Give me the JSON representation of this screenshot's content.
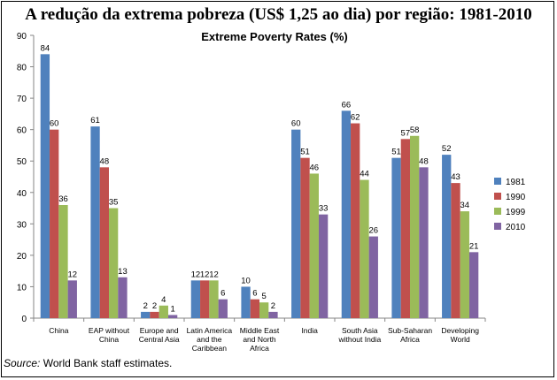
{
  "headline": "A redução da extrema pobreza (US$ 1,25 ao dia) por região: 1981-2010",
  "source": {
    "label": "Source:",
    "text": "World Bank staff estimates."
  },
  "chart_data": {
    "type": "bar",
    "title": "Extreme Poverty Rates (%)",
    "xlabel": "",
    "ylabel": "",
    "ylim": [
      0,
      90
    ],
    "yticks": [
      0,
      10,
      20,
      30,
      40,
      50,
      60,
      70,
      80,
      90
    ],
    "grid": false,
    "legend": "right",
    "categories": [
      [
        "China"
      ],
      [
        "EAP without",
        "China"
      ],
      [
        "Europe and",
        "Central Asia"
      ],
      [
        "Latin America",
        "and the",
        "Caribbean"
      ],
      [
        "Middle East",
        "and North",
        "Africa"
      ],
      [
        "India"
      ],
      [
        "South Asia",
        "without India"
      ],
      [
        "Sub-Saharan",
        "Africa"
      ],
      [
        "Developing",
        "World"
      ]
    ],
    "series": [
      {
        "name": "1981",
        "color": "#4F81BD",
        "values": [
          84,
          61,
          2,
          12,
          10,
          60,
          66,
          51,
          52
        ]
      },
      {
        "name": "1990",
        "color": "#C0504D",
        "values": [
          60,
          48,
          2,
          12,
          6,
          51,
          62,
          57,
          43
        ]
      },
      {
        "name": "1999",
        "color": "#9BBB59",
        "values": [
          36,
          35,
          4,
          12,
          5,
          46,
          44,
          58,
          34
        ]
      },
      {
        "name": "2010",
        "color": "#8064A2",
        "values": [
          12,
          13,
          1,
          6,
          2,
          33,
          26,
          48,
          21
        ]
      }
    ]
  }
}
